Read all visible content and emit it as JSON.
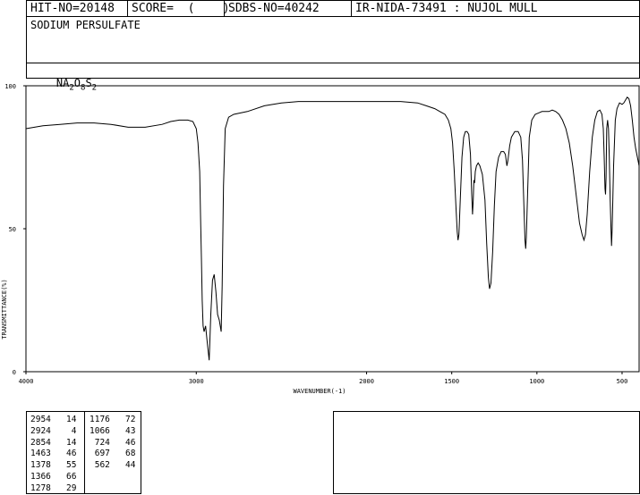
{
  "header": {
    "hit_no": "HIT-NO=20148",
    "score": "SCORE=  (    )",
    "sdbs_no": "SDBS-NO=40242",
    "ir_code": "IR-NIDA-73491 : NUJOL MULL"
  },
  "compound": {
    "name": "SODIUM PERSULFATE",
    "formula": {
      "parts": [
        "NA",
        "2",
        "O",
        "8",
        "S",
        "2"
      ]
    }
  },
  "chart_data": {
    "type": "line",
    "xlabel": "WAVENUMBER(-1)",
    "ylabel": "TRANSMITTANCE(%)",
    "xlim": [
      4000,
      400
    ],
    "ylim": [
      0,
      100
    ],
    "x_ticks": [
      4000,
      3000,
      2000,
      1500,
      1000,
      500
    ],
    "y_ticks": [
      0,
      50,
      100
    ],
    "grid": false,
    "series": [
      {
        "points": [
          [
            4000,
            85
          ],
          [
            3900,
            86
          ],
          [
            3800,
            86.5
          ],
          [
            3700,
            87
          ],
          [
            3600,
            87
          ],
          [
            3500,
            86.5
          ],
          [
            3400,
            85.5
          ],
          [
            3350,
            85.5
          ],
          [
            3300,
            85.5
          ],
          [
            3200,
            86.5
          ],
          [
            3150,
            87.5
          ],
          [
            3100,
            88
          ],
          [
            3050,
            88
          ],
          [
            3020,
            87.5
          ],
          [
            3000,
            85
          ],
          [
            2990,
            80
          ],
          [
            2980,
            70
          ],
          [
            2975,
            55
          ],
          [
            2970,
            40
          ],
          [
            2965,
            25
          ],
          [
            2960,
            16
          ],
          [
            2954,
            14
          ],
          [
            2945,
            16
          ],
          [
            2935,
            10
          ],
          [
            2924,
            4
          ],
          [
            2915,
            20
          ],
          [
            2905,
            32
          ],
          [
            2895,
            34
          ],
          [
            2885,
            28
          ],
          [
            2875,
            20
          ],
          [
            2865,
            18
          ],
          [
            2854,
            14
          ],
          [
            2848,
            30
          ],
          [
            2840,
            65
          ],
          [
            2830,
            85
          ],
          [
            2810,
            89
          ],
          [
            2780,
            90
          ],
          [
            2700,
            91
          ],
          [
            2600,
            93
          ],
          [
            2500,
            94
          ],
          [
            2400,
            94.5
          ],
          [
            2300,
            94.5
          ],
          [
            2200,
            94.5
          ],
          [
            2100,
            94.5
          ],
          [
            2000,
            94.5
          ],
          [
            1900,
            94.5
          ],
          [
            1800,
            94.5
          ],
          [
            1700,
            94
          ],
          [
            1650,
            93
          ],
          [
            1600,
            92
          ],
          [
            1570,
            91
          ],
          [
            1540,
            90
          ],
          [
            1520,
            88
          ],
          [
            1505,
            85
          ],
          [
            1495,
            80
          ],
          [
            1485,
            70
          ],
          [
            1475,
            57
          ],
          [
            1468,
            49
          ],
          [
            1463,
            46
          ],
          [
            1458,
            48
          ],
          [
            1450,
            60
          ],
          [
            1440,
            75
          ],
          [
            1430,
            82
          ],
          [
            1420,
            84
          ],
          [
            1410,
            84
          ],
          [
            1400,
            83
          ],
          [
            1390,
            76
          ],
          [
            1383,
            62
          ],
          [
            1378,
            55
          ],
          [
            1374,
            60
          ],
          [
            1370,
            67
          ],
          [
            1366,
            66
          ],
          [
            1362,
            70
          ],
          [
            1355,
            72
          ],
          [
            1345,
            73
          ],
          [
            1335,
            72
          ],
          [
            1320,
            69
          ],
          [
            1305,
            60
          ],
          [
            1295,
            45
          ],
          [
            1285,
            33
          ],
          [
            1278,
            29
          ],
          [
            1270,
            31
          ],
          [
            1260,
            42
          ],
          [
            1250,
            58
          ],
          [
            1240,
            70
          ],
          [
            1225,
            75
          ],
          [
            1210,
            77
          ],
          [
            1195,
            77
          ],
          [
            1185,
            76
          ],
          [
            1176,
            72
          ],
          [
            1170,
            74
          ],
          [
            1160,
            79
          ],
          [
            1150,
            82
          ],
          [
            1130,
            84
          ],
          [
            1110,
            84
          ],
          [
            1095,
            82
          ],
          [
            1085,
            74
          ],
          [
            1075,
            55
          ],
          [
            1070,
            46
          ],
          [
            1066,
            43
          ],
          [
            1062,
            47
          ],
          [
            1055,
            62
          ],
          [
            1045,
            82
          ],
          [
            1030,
            88
          ],
          [
            1010,
            90
          ],
          [
            990,
            90.5
          ],
          [
            970,
            91
          ],
          [
            950,
            91
          ],
          [
            930,
            91
          ],
          [
            910,
            91.5
          ],
          [
            890,
            91
          ],
          [
            870,
            90
          ],
          [
            850,
            88
          ],
          [
            830,
            85
          ],
          [
            810,
            80
          ],
          [
            790,
            72
          ],
          [
            770,
            62
          ],
          [
            750,
            52
          ],
          [
            735,
            48
          ],
          [
            724,
            46
          ],
          [
            715,
            48
          ],
          [
            705,
            55
          ],
          [
            690,
            70
          ],
          [
            675,
            82
          ],
          [
            660,
            88
          ],
          [
            645,
            91
          ],
          [
            630,
            91.5
          ],
          [
            618,
            90
          ],
          [
            610,
            85
          ],
          [
            605,
            75
          ],
          [
            600,
            64
          ],
          [
            597,
            62
          ],
          [
            594,
            68
          ],
          [
            590,
            85
          ],
          [
            585,
            88
          ],
          [
            580,
            85
          ],
          [
            575,
            75
          ],
          [
            570,
            60
          ],
          [
            565,
            50
          ],
          [
            562,
            44
          ],
          [
            558,
            50
          ],
          [
            550,
            72
          ],
          [
            540,
            88
          ],
          [
            530,
            92
          ],
          [
            515,
            94
          ],
          [
            500,
            93.5
          ],
          [
            490,
            94
          ],
          [
            480,
            95
          ],
          [
            470,
            96
          ],
          [
            460,
            95.5
          ],
          [
            450,
            93
          ],
          [
            440,
            88
          ],
          [
            430,
            82
          ],
          [
            420,
            78
          ],
          [
            410,
            75
          ],
          [
            400,
            72
          ]
        ]
      }
    ],
    "peak_table": {
      "col1": [
        [
          "2954",
          "14"
        ],
        [
          "2924",
          "4"
        ],
        [
          "2854",
          "14"
        ],
        [
          "1463",
          "46"
        ],
        [
          "1378",
          "55"
        ],
        [
          "1366",
          "66"
        ],
        [
          "1278",
          "29"
        ]
      ],
      "col2": [
        [
          "1176",
          "72"
        ],
        [
          "1066",
          "43"
        ],
        [
          "724",
          "46"
        ],
        [
          "697",
          "68"
        ],
        [
          "562",
          "44"
        ]
      ]
    }
  }
}
